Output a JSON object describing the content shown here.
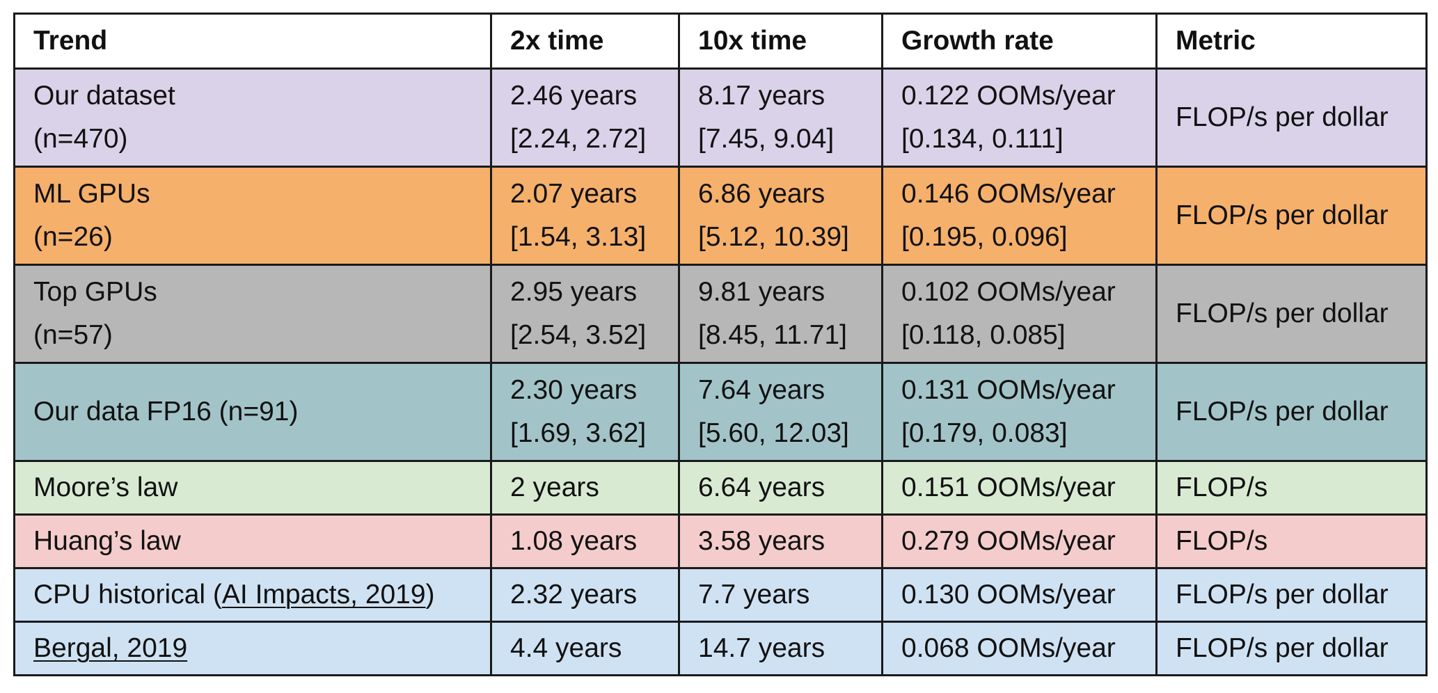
{
  "headers": [
    "Trend",
    "2x time",
    "10x time",
    "Growth rate",
    "Metric"
  ],
  "rows": [
    {
      "color": "#d9d2e9",
      "trend": [
        "Our dataset",
        "(n=470)"
      ],
      "two_x": [
        "2.46 years",
        "[2.24, 2.72]"
      ],
      "ten_x": [
        "8.17 years",
        "[7.45, 9.04]"
      ],
      "growth": [
        "0.122 OOMs/year",
        "[0.134, 0.111]"
      ],
      "metric": "FLOP/s per dollar"
    },
    {
      "color": "#f5b06b",
      "trend": [
        "ML GPUs",
        "(n=26)"
      ],
      "two_x": [
        "2.07 years",
        "[1.54, 3.13]"
      ],
      "ten_x": [
        "6.86 years",
        "[5.12, 10.39]"
      ],
      "growth": [
        "0.146 OOMs/year",
        "[0.195, 0.096]"
      ],
      "metric": "FLOP/s per dollar"
    },
    {
      "color": "#b7b7b7",
      "trend": [
        "Top GPUs",
        "(n=57)"
      ],
      "two_x": [
        "2.95 years",
        "[2.54, 3.52]"
      ],
      "ten_x": [
        "9.81 years",
        "[8.45, 11.71]"
      ],
      "growth": [
        "0.102 OOMs/year",
        "[0.118, 0.085]"
      ],
      "metric": "FLOP/s per dollar"
    },
    {
      "color": "#a2c4c9",
      "trend_single": "Our data FP16 (n=91)",
      "two_x": [
        "2.30 years",
        "[1.69, 3.62]"
      ],
      "ten_x": [
        "7.64 years",
        "[5.60, 12.03]"
      ],
      "growth": [
        "0.131 OOMs/year",
        "[0.179, 0.083]"
      ],
      "metric": "FLOP/s per dollar"
    },
    {
      "color": "#d9ead3",
      "trend": "Moore’s law",
      "two_x": "2 years",
      "ten_x": "6.64 years",
      "growth": "0.151 OOMs/year",
      "metric": "FLOP/s"
    },
    {
      "color": "#f4cccc",
      "trend": "Huang’s law",
      "two_x": "1.08 years",
      "ten_x": "3.58 years",
      "growth": "0.279 OOMs/year",
      "metric": "FLOP/s"
    },
    {
      "color": "#cfe2f3",
      "trend_prefix": "CPU historical (",
      "trend_link": "AI Impacts, 2019",
      "trend_suffix": ")",
      "two_x": "2.32 years",
      "ten_x": "7.7 years",
      "growth": "0.130 OOMs/year",
      "metric": "FLOP/s per dollar"
    },
    {
      "color": "#cfe2f3",
      "trend_link": "Bergal, 2019",
      "two_x": "4.4 years",
      "ten_x": "14.7 years",
      "growth": "0.068 OOMs/year",
      "metric": "FLOP/s per dollar"
    }
  ]
}
